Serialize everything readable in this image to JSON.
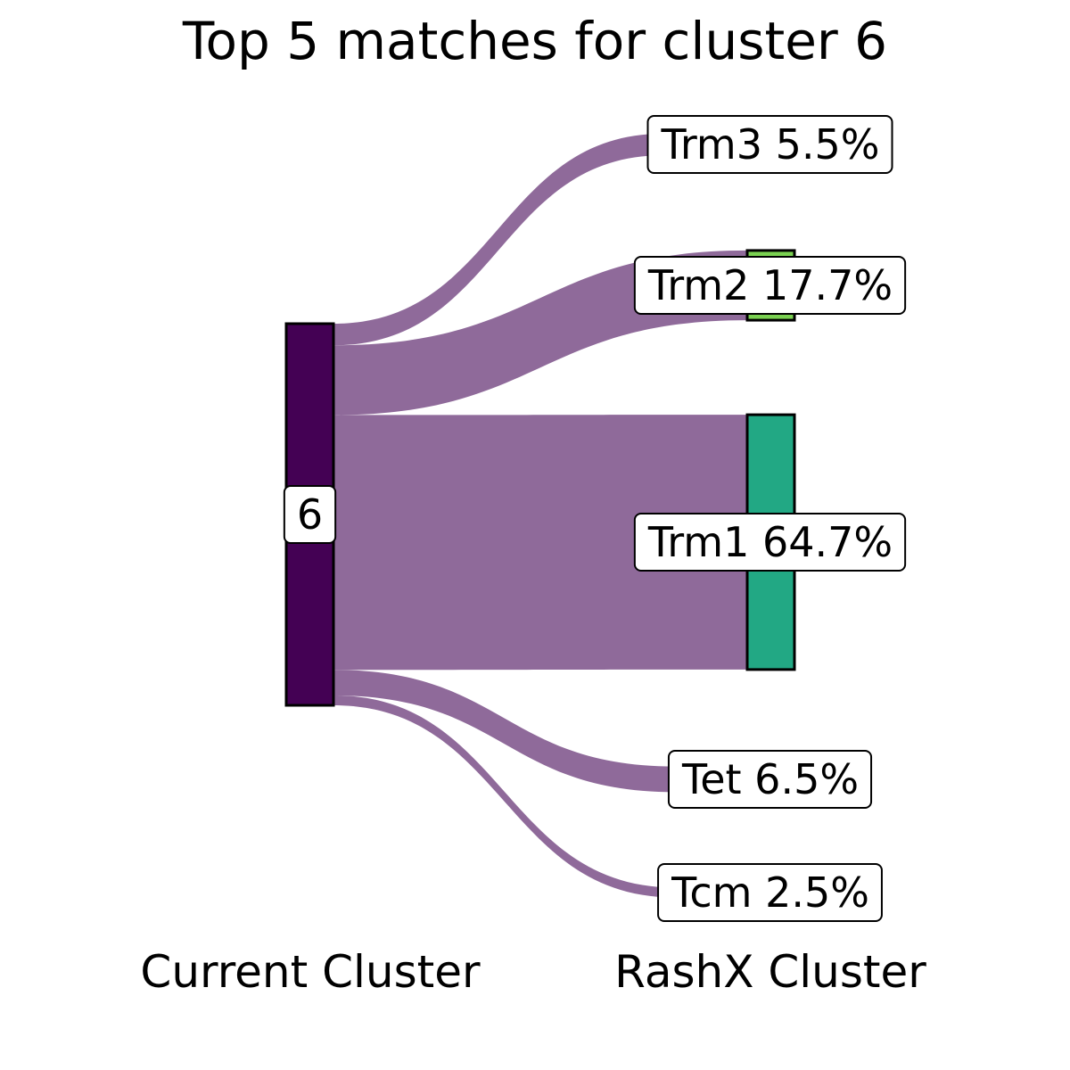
{
  "chart_data": {
    "type": "sankey",
    "title": "Top 5 matches for cluster 6",
    "axis_labels": [
      "Current Cluster",
      "RashX Cluster"
    ],
    "source": {
      "label": "6",
      "color": "#440154"
    },
    "flow_color": "#8f6a9a",
    "targets": [
      {
        "name": "Trm3",
        "percent": 5.5,
        "label": "Trm3 5.5%",
        "color": "#440154",
        "bar": false
      },
      {
        "name": "Trm2",
        "percent": 17.7,
        "label": "Trm2 17.7%",
        "color": "#7ad151",
        "bar": true
      },
      {
        "name": "Trm1",
        "percent": 64.7,
        "label": "Trm1 64.7%",
        "color": "#22a884",
        "bar": true
      },
      {
        "name": "Tet",
        "percent": 6.5,
        "label": "Tet 6.5%",
        "color": "#440154",
        "bar": false
      },
      {
        "name": "Tcm",
        "percent": 2.5,
        "label": "Tcm 2.5%",
        "color": "#440154",
        "bar": false
      }
    ]
  }
}
